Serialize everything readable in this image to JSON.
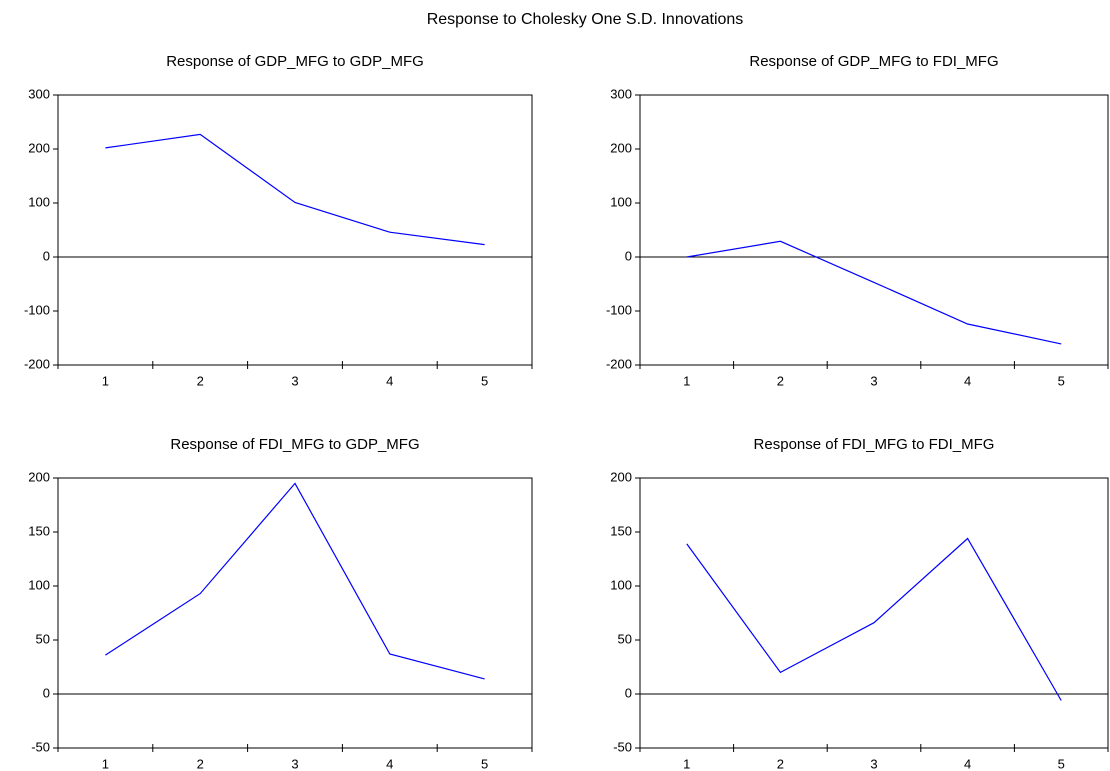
{
  "title": "Response to Cholesky One S.D. Innovations",
  "chart_data": [
    {
      "type": "line",
      "title": "Response of GDP_MFG to GDP_MFG",
      "categories": [
        "1",
        "2",
        "3",
        "4",
        "5"
      ],
      "values": [
        202,
        227,
        101,
        46,
        23
      ],
      "color": "#0000ff",
      "ylim": [
        -200,
        300
      ],
      "yticks": [
        -200,
        -100,
        0,
        100,
        200,
        300
      ],
      "zero_line": true
    },
    {
      "type": "line",
      "title": "Response of GDP_MFG to FDI_MFG",
      "categories": [
        "1",
        "2",
        "3",
        "4",
        "5"
      ],
      "values": [
        0,
        29,
        -47,
        -124,
        -161
      ],
      "color": "#0000ff",
      "ylim": [
        -200,
        300
      ],
      "yticks": [
        -200,
        -100,
        0,
        100,
        200,
        300
      ],
      "zero_line": true
    },
    {
      "type": "line",
      "title": "Response of FDI_MFG to GDP_MFG",
      "categories": [
        "1",
        "2",
        "3",
        "4",
        "5"
      ],
      "values": [
        36,
        93,
        195,
        37,
        14
      ],
      "color": "#0000ff",
      "ylim": [
        -50,
        200
      ],
      "yticks": [
        -50,
        0,
        50,
        100,
        150,
        200
      ],
      "zero_line": true
    },
    {
      "type": "line",
      "title": "Response of FDI_MFG to FDI_MFG",
      "categories": [
        "1",
        "2",
        "3",
        "4",
        "5"
      ],
      "values": [
        139,
        20,
        66,
        144,
        -6
      ],
      "color": "#0000ff",
      "ylim": [
        -50,
        200
      ],
      "yticks": [
        -50,
        0,
        50,
        100,
        150,
        200
      ],
      "zero_line": true
    }
  ]
}
